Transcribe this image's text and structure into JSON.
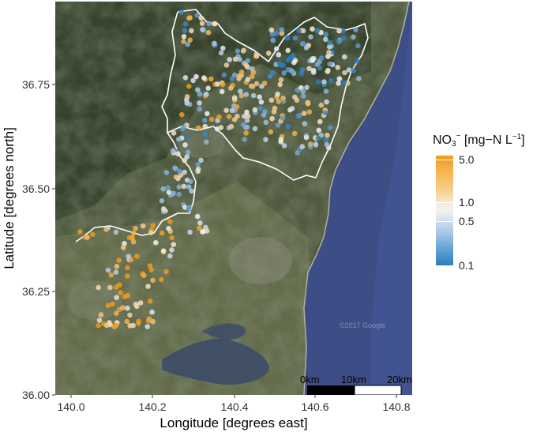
{
  "map": {
    "x_label": "Longitude [degrees east]",
    "y_label": "Latitude [degrees north]",
    "x_ticks": [
      "140.0",
      "140.2",
      "140.4",
      "140.6",
      "140.8"
    ],
    "y_ticks": [
      "36.00",
      "36.25",
      "36.50",
      "36.75"
    ],
    "watermark": "©2017 Google",
    "scale_bar": {
      "labels": [
        "0km",
        "10km",
        "20km"
      ]
    },
    "colors": {
      "low": "#2d7bbd",
      "mid": "#f3f3f3",
      "high": "#ee9a1c",
      "sea": "#3d4e86",
      "land": "#4f5a3f",
      "boundary": "#ffffff"
    }
  },
  "legend": {
    "title_prefix": "NO",
    "title_sub": "3",
    "title_sup": "−",
    "title_mid": " [mg−N L",
    "title_exp": "−1",
    "title_end": "]",
    "labels": [
      "5.0",
      "1.0",
      "0.5",
      "0.1"
    ],
    "scale": "log",
    "range": [
      0.1,
      5.0
    ]
  }
}
